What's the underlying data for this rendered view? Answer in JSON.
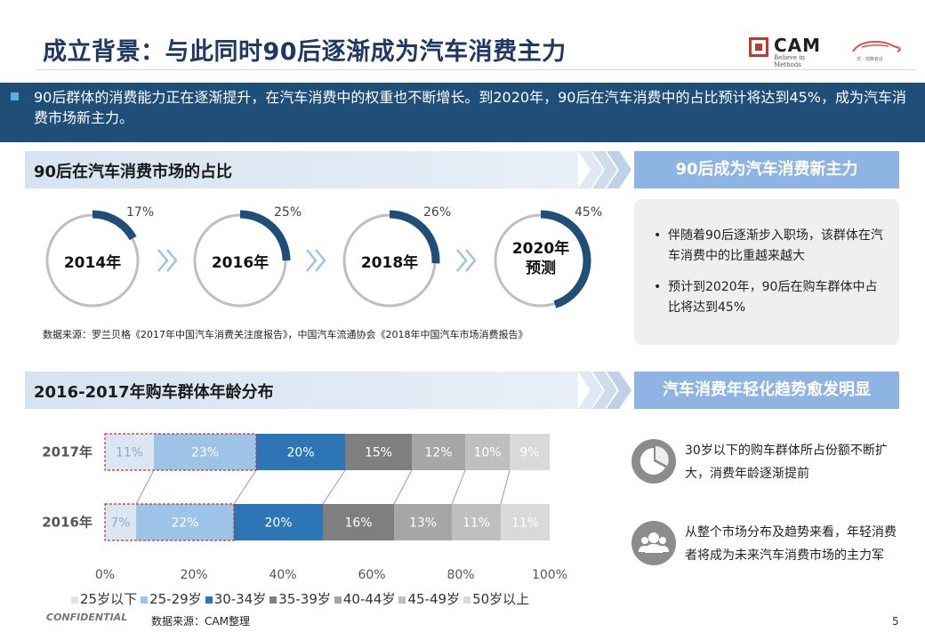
{
  "header": {
    "title": "成立背景：与此同时90后逐渐成为汽车消费主力",
    "logo_cam_text": "CAM",
    "logo_cam_sub": "Believe in Methods",
    "logo_car_sub": "驾 · 观察者说"
  },
  "banner": {
    "text": "90后群体的消费能力正在逐渐提升，在汽车消费中的权重也不断增长。到2020年，90后在汽车消费中的占比预计将达到45%，成为汽车消费市场新主力。"
  },
  "section1": {
    "title": "90后在汽车消费市场的占比",
    "right_title": "90后成为汽车消费新主力",
    "bullets": [
      "伴随着90后逐渐步入职场，该群体在汽车消费中的比重越来越大",
      "预计到2020年，90后在购车群体中占比将达到45%"
    ],
    "source": "数据来源：罗兰贝格《2017年中国汽车消费关注度报告》，中国汽车流通协会《2018年中国汽车市场消费报告》"
  },
  "section2": {
    "title": "2016-2017年购车群体年龄分布",
    "right_title": "汽车消费年轻化趋势愈发明显",
    "features": [
      {
        "icon": "pie-chart-icon",
        "text": "30岁以下的购车群体所占份额不断扩大，消费年龄逐渐提前"
      },
      {
        "icon": "people-group-icon",
        "text": "从整个市场分布及趋势来看，年轻消费者将成为未来汽车消费市场的主力军"
      }
    ],
    "source": "数据来源：CAM整理"
  },
  "footer": {
    "confidential": "CONFIDENTIAL",
    "page": "5"
  },
  "colors": {
    "primary": "#1f4e79",
    "accent": "#8db4e2",
    "title": "#1f3864"
  },
  "chart_data": [
    {
      "type": "pie",
      "chart_kind": "donut-progress",
      "items": [
        {
          "label": "2014年",
          "value": 17,
          "value_label": "17%"
        },
        {
          "label": "2016年",
          "value": 25,
          "value_label": "25%"
        },
        {
          "label": "2018年",
          "value": 26,
          "value_label": "26%"
        },
        {
          "label": "2020年 预测",
          "label_line1": "2020年",
          "label_line2": "预测",
          "value": 45,
          "value_label": "45%"
        }
      ]
    },
    {
      "type": "bar",
      "orientation": "horizontal",
      "stacked": true,
      "percent_stacked": true,
      "categories": [
        "2017年",
        "2016年"
      ],
      "xlim": [
        0,
        100
      ],
      "xticks": [
        "0%",
        "20%",
        "40%",
        "60%",
        "80%",
        "100%"
      ],
      "series": [
        {
          "name": "25岁以下",
          "values": [
            11,
            7
          ],
          "labels": [
            "11%",
            "7%"
          ],
          "color": "#dce6f2",
          "label_color": "#8ea9c8"
        },
        {
          "name": "25-29岁",
          "values": [
            23,
            22
          ],
          "labels": [
            "23%",
            "22%"
          ],
          "color": "#9dc3e6",
          "label_color": "#ffffff"
        },
        {
          "name": "30-34岁",
          "values": [
            20,
            20
          ],
          "labels": [
            "20%",
            "20%"
          ],
          "color": "#2e75b6",
          "label_color": "#ffffff"
        },
        {
          "name": "35-39岁",
          "values": [
            15,
            16
          ],
          "labels": [
            "15%",
            "16%"
          ],
          "color": "#7f7f7f",
          "label_color": "#ffffff"
        },
        {
          "name": "40-44岁",
          "values": [
            12,
            13
          ],
          "labels": [
            "12%",
            "13%"
          ],
          "color": "#a6a6a6",
          "label_color": "#ffffff"
        },
        {
          "name": "45-49岁",
          "values": [
            10,
            11
          ],
          "labels": [
            "10%",
            "11%"
          ],
          "color": "#bfbfbf",
          "label_color": "#ffffff"
        },
        {
          "name": "50岁以上",
          "values": [
            9,
            11
          ],
          "labels": [
            "9%",
            "11%"
          ],
          "color": "#d9d9d9",
          "label_color": "#ffffff"
        }
      ]
    }
  ]
}
